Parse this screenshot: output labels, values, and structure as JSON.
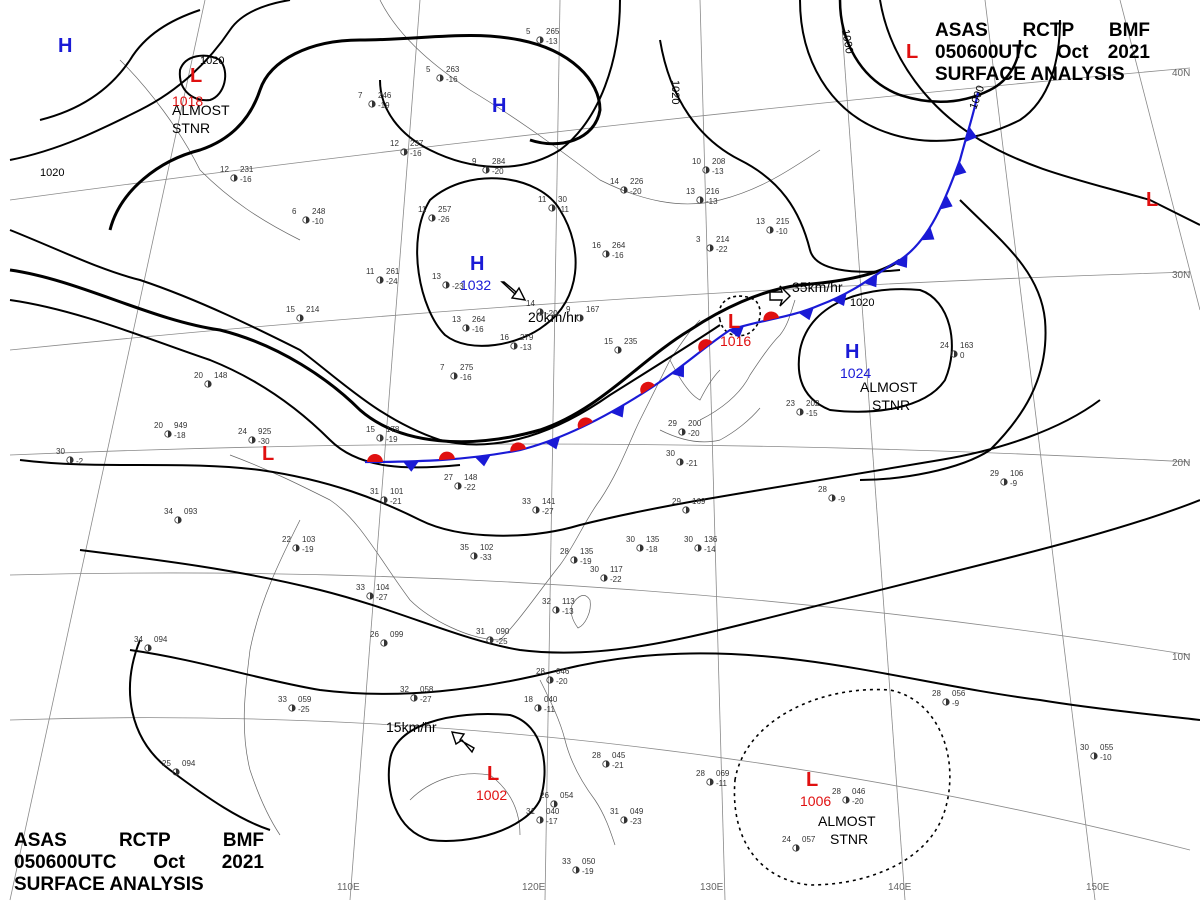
{
  "header": {
    "line1": [
      "ASAS",
      "RCTP",
      "BMF"
    ],
    "line2": [
      "050600UTC",
      "Oct",
      "2021"
    ],
    "line3": "SURFACE ANALYSIS"
  },
  "colors": {
    "high": "#1a1ad6",
    "low": "#e01010",
    "front_warm": "#e01010",
    "front_cold": "#1a1ad6",
    "isobar": "#000000",
    "grid": "#888888",
    "coast": "#555555"
  },
  "lat_labels": [
    "40N",
    "30N",
    "20N",
    "10N"
  ],
  "lon_labels": [
    "110E",
    "120E",
    "130E",
    "140E",
    "150E"
  ],
  "pressure_centers": [
    {
      "type": "H",
      "value": ""
    },
    {
      "type": "L",
      "value": "1018"
    },
    {
      "type": "H",
      "value": ""
    },
    {
      "type": "H",
      "value": "1032"
    },
    {
      "type": "L",
      "value": "1016"
    },
    {
      "type": "H",
      "value": "1024"
    },
    {
      "type": "L",
      "value": ""
    },
    {
      "type": "L",
      "value": ""
    },
    {
      "type": "L",
      "value": ""
    },
    {
      "type": "L",
      "value": "1002"
    },
    {
      "type": "L",
      "value": "1006"
    }
  ],
  "isobar_labels": [
    "1020",
    "1020",
    "1020",
    "1020",
    "1000",
    "1000",
    "1020"
  ],
  "annotations": [
    "ALMOST\nSTNR",
    "ALMOST\nSTNR",
    "ALMOST\nSTNR"
  ],
  "motion": [
    "20km/hr",
    "35km/hr",
    "15km/hr"
  ],
  "stations": [
    [
      "5",
      "265",
      "-13"
    ],
    [
      "5",
      "263",
      "-16"
    ],
    [
      "7",
      "246",
      "-19"
    ],
    [
      "12",
      "237",
      "-16"
    ],
    [
      "9",
      "284",
      "-20"
    ],
    [
      "12",
      "231",
      "-16"
    ],
    [
      "6",
      "248",
      "-10"
    ],
    [
      "11",
      "257",
      "-26"
    ],
    [
      "11",
      "261",
      "-24"
    ],
    [
      "13",
      "",
      "-23"
    ],
    [
      "11",
      "30",
      "-11"
    ],
    [
      "14",
      "226",
      "-20"
    ],
    [
      "13",
      "216",
      "-13"
    ],
    [
      "10",
      "208",
      "-13"
    ],
    [
      "3",
      "214",
      "-22"
    ],
    [
      "16",
      "264",
      "-16"
    ],
    [
      "13",
      "215",
      "-10"
    ],
    [
      "15",
      "214",
      ""
    ],
    [
      "13",
      "264",
      "-16"
    ],
    [
      "16",
      "279",
      "-13"
    ],
    [
      "14",
      "",
      "-20"
    ],
    [
      "9",
      "167",
      ""
    ],
    [
      "7",
      "275",
      "-16"
    ],
    [
      "15",
      "235",
      ""
    ],
    [
      "20",
      "148",
      ""
    ],
    [
      "20",
      "949",
      "-18"
    ],
    [
      "24",
      "925",
      "-30"
    ],
    [
      "30",
      "",
      "-2"
    ],
    [
      "15",
      "178",
      "-19"
    ],
    [
      "27",
      "148",
      "-22"
    ],
    [
      "31",
      "101",
      "-21"
    ],
    [
      "33",
      "141",
      "-27"
    ],
    [
      "34",
      "093",
      ""
    ],
    [
      "22",
      "103",
      "-19"
    ],
    [
      "35",
      "102",
      "-33"
    ],
    [
      "28",
      "135",
      "-19"
    ],
    [
      "30",
      "117",
      "-22"
    ],
    [
      "30",
      "135",
      "-18"
    ],
    [
      "30",
      "136",
      "-14"
    ],
    [
      "33",
      "104",
      "-27"
    ],
    [
      "32",
      "113",
      "-13"
    ],
    [
      "29",
      "169",
      ""
    ],
    [
      "28",
      "",
      "-9"
    ],
    [
      "29",
      "106",
      "-9"
    ],
    [
      "23",
      "202",
      "-15"
    ],
    [
      "24",
      "163",
      "0"
    ],
    [
      "29",
      "200",
      "-20"
    ],
    [
      "30",
      "",
      "-21"
    ],
    [
      "34",
      "094",
      ""
    ],
    [
      "26",
      "099",
      ""
    ],
    [
      "31",
      "090",
      "-25"
    ],
    [
      "33",
      "059",
      "-25"
    ],
    [
      "32",
      "058",
      "-27"
    ],
    [
      "28",
      "046",
      "-20"
    ],
    [
      "18",
      "040",
      "-11"
    ],
    [
      "28",
      "045",
      "-21"
    ],
    [
      "26",
      "054",
      ""
    ],
    [
      "31",
      "049",
      "-23"
    ],
    [
      "31",
      "040",
      "-17"
    ],
    [
      "28",
      "069",
      "-11"
    ],
    [
      "28",
      "046",
      "-20"
    ],
    [
      "24",
      "057",
      ""
    ],
    [
      "25",
      "094",
      ""
    ],
    [
      "28",
      "056",
      "-9"
    ],
    [
      "30",
      "055",
      "-10"
    ],
    [
      "33",
      "050",
      "-19"
    ]
  ]
}
